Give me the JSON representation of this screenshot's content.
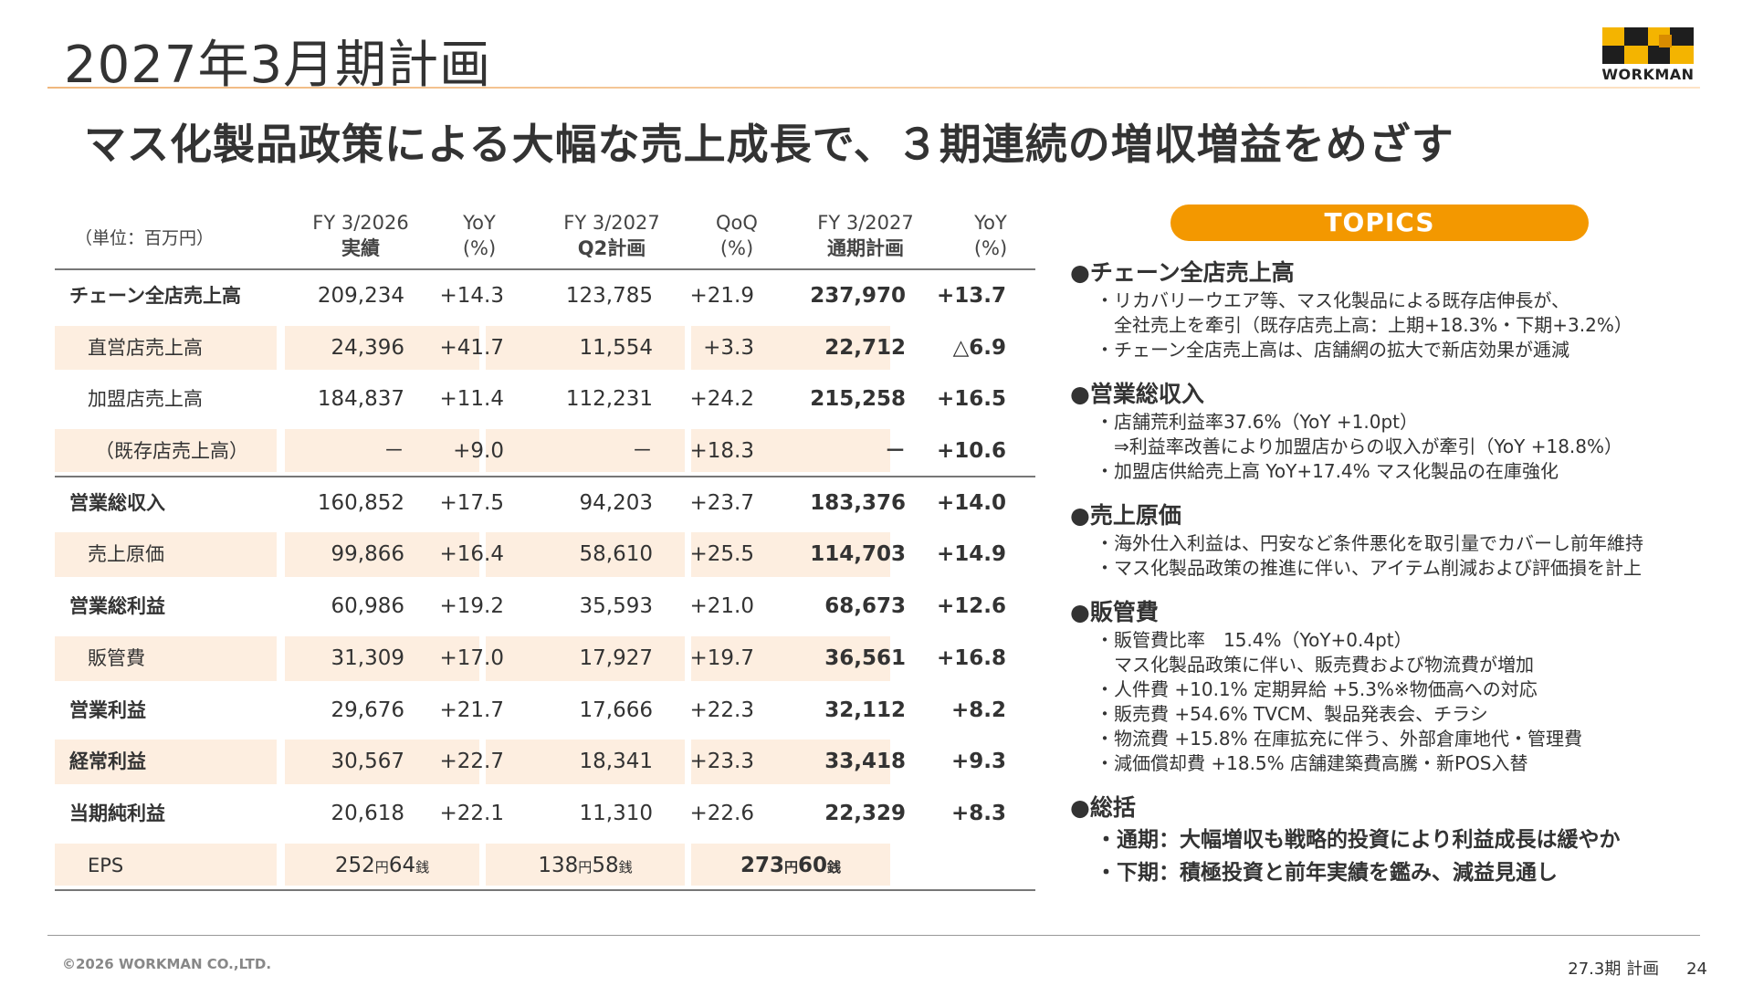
{
  "page_title": "2027年3月期計画",
  "logo_text": "WORKMAN",
  "headline": "マス化製品政策による大幅な売上成長で、３期連続の増収増益をめざす",
  "table": {
    "unit": "（単位：百万円）",
    "headers": [
      {
        "line1": "FY 3/2026",
        "line2": "実績"
      },
      {
        "line1": "YoY",
        "line2": "(%)"
      },
      {
        "line1": "FY 3/2027",
        "line2": "Q2計画"
      },
      {
        "line1": "QoQ",
        "line2": "(%)"
      },
      {
        "line1": "FY 3/2027",
        "line2": "通期計画"
      },
      {
        "line1": "YoY",
        "line2": "(%)"
      }
    ],
    "rows": [
      {
        "label": "チェーン全店売上高",
        "c1": "209,234",
        "c2": "+14.3",
        "c3": "123,785",
        "c4": "+21.9",
        "c5": "237,970",
        "c6": "+13.7"
      },
      {
        "label": "直営店売上高",
        "c1": "24,396",
        "c2": "+41.7",
        "c3": "11,554",
        "c4": "+3.3",
        "c5": "22,712",
        "c6": "△6.9"
      },
      {
        "label": "加盟店売上高",
        "c1": "184,837",
        "c2": "+11.4",
        "c3": "112,231",
        "c4": "+24.2",
        "c5": "215,258",
        "c6": "+16.5"
      },
      {
        "label": "（既存店売上高）",
        "c1": "－",
        "c2": "+9.0",
        "c3": "－",
        "c4": "+18.3",
        "c5": "－",
        "c6": "+10.6"
      },
      {
        "label": "営業総収入",
        "c1": "160,852",
        "c2": "+17.5",
        "c3": "94,203",
        "c4": "+23.7",
        "c5": "183,376",
        "c6": "+14.0"
      },
      {
        "label": "売上原価",
        "c1": "99,866",
        "c2": "+16.4",
        "c3": "58,610",
        "c4": "+25.5",
        "c5": "114,703",
        "c6": "+14.9"
      },
      {
        "label": "営業総利益",
        "c1": "60,986",
        "c2": "+19.2",
        "c3": "35,593",
        "c4": "+21.0",
        "c5": "68,673",
        "c6": "+12.6"
      },
      {
        "label": "販管費",
        "c1": "31,309",
        "c2": "+17.0",
        "c3": "17,927",
        "c4": "+19.7",
        "c5": "36,561",
        "c6": "+16.8"
      },
      {
        "label": "営業利益",
        "c1": "29,676",
        "c2": "+21.7",
        "c3": "17,666",
        "c4": "+22.3",
        "c5": "32,112",
        "c6": "+8.2"
      },
      {
        "label": "経常利益",
        "c1": "30,567",
        "c2": "+22.7",
        "c3": "18,341",
        "c4": "+23.3",
        "c5": "33,418",
        "c6": "+9.3"
      },
      {
        "label": "当期純利益",
        "c1": "20,618",
        "c2": "+22.1",
        "c3": "11,310",
        "c4": "+22.6",
        "c5": "22,329",
        "c6": "+8.3"
      }
    ],
    "eps": {
      "label": "EPS",
      "v1_yen": "252",
      "v1_sen": "64",
      "v2_yen": "138",
      "v2_sen": "58",
      "v3_yen": "273",
      "v3_sen": "60",
      "yen_unit": "円",
      "sen_unit": "銭"
    }
  },
  "topics": {
    "title": "TOPICS",
    "sections": [
      {
        "head": "●チェーン全店売上高",
        "lines": [
          "・リカバリーウエア等、マス化製品による既存店伸長が、",
          "　全社売上を牽引（既存店売上高：上期+18.3%・下期+3.2%）",
          "・チェーン全店売上高は、店舗網の拡大で新店効果が逓減"
        ]
      },
      {
        "head": "●営業総収入",
        "lines": [
          "・店舗荒利益率37.6%（YoY +1.0pt）",
          "　⇒利益率改善により加盟店からの収入が牽引（YoY +18.8%）",
          "・加盟店供給売上高 YoY+17.4% マス化製品の在庫強化"
        ]
      },
      {
        "head": "●売上原価",
        "lines": [
          "・海外仕入利益は、円安など条件悪化を取引量でカバーし前年維持",
          "・マス化製品政策の推進に伴い、アイテム削減および評価損を計上"
        ]
      },
      {
        "head": "●販管費",
        "lines": [
          "・販管費比率　15.4%（YoY+0.4pt）",
          "　マス化製品政策に伴い、販売費および物流費が増加",
          "・人件費 +10.1% 定期昇給 +5.3%※物価高への対応",
          "・販売費 +54.6% TVCM、製品発表会、チラシ",
          "・物流費 +15.8% 在庫拡充に伴う、外部倉庫地代・管理費",
          "・減価償却費 +18.5% 店舗建築費高騰・新POS入替"
        ]
      },
      {
        "head": "●総括",
        "bold_lines": [
          "・通期：大幅増収も戦略的投資により利益成長は緩やか",
          "・下期：積極投資と前年実績を鑑み、減益見通し"
        ]
      }
    ]
  },
  "footer": {
    "copyright": "©2026 WORKMAN CO.,LTD.",
    "section": "27.3期 計画",
    "page_number": "24"
  },
  "colors": {
    "accent": "#f39800",
    "row_shade": "#fdeee0",
    "text": "#333333"
  }
}
